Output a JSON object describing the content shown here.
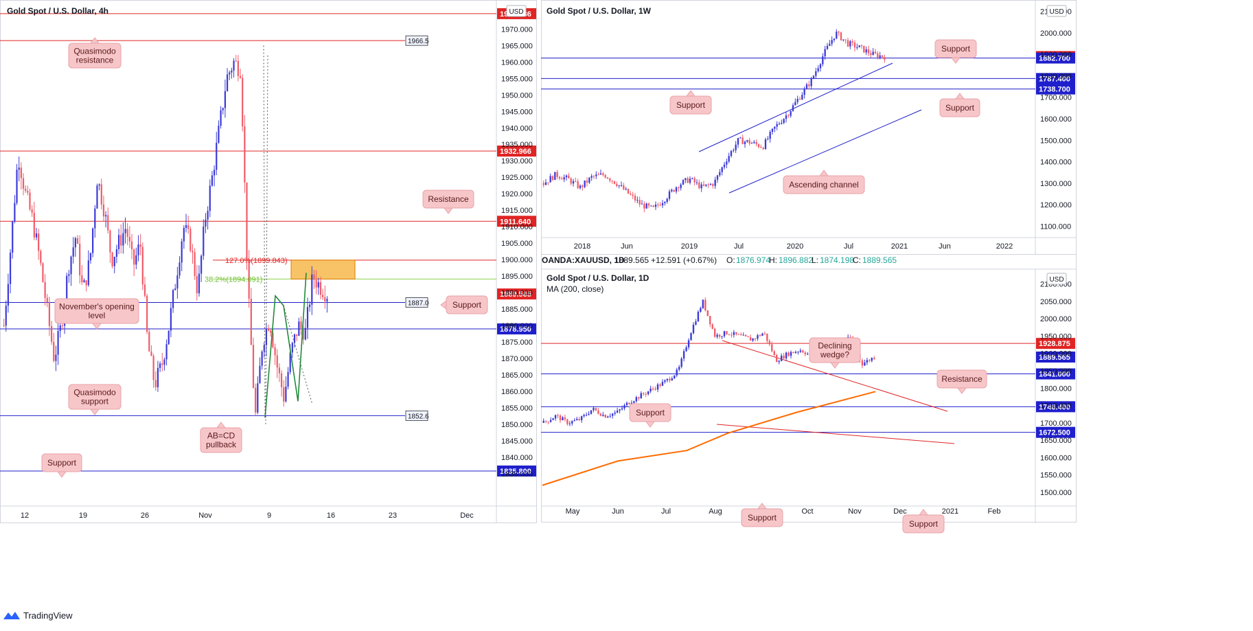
{
  "brand": {
    "name": "TradingView"
  },
  "colors": {
    "up": "#3b3bd6",
    "down": "#f05c6a",
    "support": "#1f1fcc",
    "resistance": "#e02424",
    "label_bg": "#f7c6c9",
    "label_text": "#5a1a1a",
    "ma": "#ff6a00",
    "zone": "#f7b84b"
  },
  "chart_data": [
    {
      "type": "candlestick",
      "title": "Gold Spot / U.S. Dollar, 4h",
      "currency_badge": "USD",
      "ylim": [
        1826,
        1978
      ],
      "y_ticks": [
        "1970.000",
        "1965.000",
        "1960.000",
        "1955.000",
        "1950.000",
        "1945.000",
        "1940.000",
        "1935.000",
        "1930.000",
        "1925.000",
        "1920.000",
        "1915.000",
        "1910.000",
        "1905.000",
        "1900.000",
        "1895.000",
        "1890.000",
        "1885.000",
        "1880.000",
        "1875.000",
        "1870.000",
        "1865.000",
        "1860.000",
        "1855.000",
        "1850.000",
        "1845.000",
        "1840.000",
        "1835.000"
      ],
      "x_ticks": [
        "12",
        "19",
        "26",
        "Nov",
        "9",
        "16",
        "23",
        "Dec"
      ],
      "close_path": [
        1880,
        1905,
        1932,
        1920,
        1912,
        1900,
        1885,
        1870,
        1880,
        1898,
        1907,
        1890,
        1900,
        1925,
        1915,
        1900,
        1905,
        1910,
        1898,
        1905,
        1875,
        1862,
        1868,
        1880,
        1895,
        1910,
        1905,
        1890,
        1912,
        1925,
        1940,
        1955,
        1960,
        1958,
        1890,
        1852,
        1875,
        1882,
        1868,
        1858,
        1872,
        1880,
        1878,
        1895,
        1892,
        1889.565
      ],
      "levels": [
        {
          "value": 1974.686,
          "label": "1974.686",
          "color": "red",
          "style": "tag"
        },
        {
          "value": 1966.5,
          "label": "1966.5",
          "color": "red",
          "style": "box"
        },
        {
          "value": 1932.966,
          "label": "1932.966",
          "color": "red",
          "style": "tag"
        },
        {
          "value": 1911.64,
          "label": "1911.640",
          "color": "red",
          "style": "tag"
        },
        {
          "value": 1887.0,
          "label": "1887.0",
          "color": "blue",
          "style": "box"
        },
        {
          "value": 1878.95,
          "label": "1878.950",
          "color": "blue",
          "style": "tag"
        },
        {
          "value": 1852.6,
          "label": "1852.6",
          "color": "blue",
          "style": "box"
        },
        {
          "value": 1835.8,
          "label": "1835.800",
          "color": "blue",
          "style": "tag"
        }
      ],
      "last_price": {
        "value": 1889.565,
        "label": "1889.565"
      },
      "fib_labels": [
        {
          "text": "127.0%(1899.843)",
          "value": 1899.843,
          "color": "#e02424"
        },
        {
          "text": "38.2%(1894.091)",
          "value": 1894.091,
          "color": "#6fbf2f"
        }
      ],
      "zone": {
        "y_top": 1899.843,
        "y_bottom": 1894.091
      },
      "annotations": [
        {
          "text": "Quasimodo\nresistance"
        },
        {
          "text": "Resistance"
        },
        {
          "text": "November's opening\nlevel"
        },
        {
          "text": "Support"
        },
        {
          "text": "Quasimodo\nsupport"
        },
        {
          "text": "AB=CD\npullback"
        },
        {
          "text": "Support"
        }
      ]
    },
    {
      "type": "candlestick",
      "title": "Gold Spot / U.S. Dollar, 1W",
      "currency_badge": "USD",
      "ylim": [
        1060,
        2140
      ],
      "y_ticks": [
        "2100.000",
        "2000.000",
        "1900.000",
        "1800.000",
        "1700.000",
        "1600.000",
        "1500.000",
        "1400.000",
        "1300.000",
        "1200.000",
        "1100.000"
      ],
      "x_ticks": [
        "2018",
        "Jun",
        "2019",
        "Jul",
        "2020",
        "Jul",
        "2021",
        "Jun",
        "2022"
      ],
      "close_path": [
        1300,
        1340,
        1320,
        1280,
        1330,
        1340,
        1300,
        1250,
        1200,
        1180,
        1230,
        1290,
        1320,
        1280,
        1300,
        1410,
        1500,
        1490,
        1470,
        1560,
        1620,
        1700,
        1780,
        1900,
        2000,
        1950,
        1930,
        1900,
        1889.565
      ],
      "levels": [
        {
          "value": 1889.565,
          "label": "1889.565",
          "color": "red",
          "style": "tag"
        },
        {
          "value": 1882.7,
          "label": "1882.700",
          "color": "blue",
          "style": "tag"
        },
        {
          "value": 1787.4,
          "label": "1787.400",
          "color": "blue",
          "style": "tag"
        },
        {
          "value": 1738.7,
          "label": "1738.700",
          "color": "blue",
          "style": "tag"
        }
      ],
      "annotations": [
        {
          "text": "Support"
        },
        {
          "text": "Support"
        },
        {
          "text": "Support"
        },
        {
          "text": "Ascending channel"
        }
      ]
    },
    {
      "type": "candlestick",
      "title": "Gold Spot / U.S. Dollar, 1D",
      "symbol_bar": {
        "symbol": "OANDA:XAUUSD, 1D",
        "price": "1889.565",
        "change": "+12.591 (+0.67%)",
        "open": "1876.974",
        "high": "1896.882",
        "low": "1874.198",
        "close": "1889.565"
      },
      "ma_label": "MA (200, close)",
      "currency_badge": "USD",
      "ylim": [
        1470,
        2135
      ],
      "y_ticks": [
        "2100.000",
        "2050.000",
        "2000.000",
        "1950.000",
        "1900.000",
        "1850.000",
        "1800.000",
        "1750.000",
        "1700.000",
        "1650.000",
        "1600.000",
        "1550.000",
        "1500.000"
      ],
      "x_ticks": [
        "May",
        "Jun",
        "Jul",
        "Aug",
        "Sep",
        "Oct",
        "Nov",
        "Dec",
        "2021",
        "Feb"
      ],
      "close_path": [
        1700,
        1720,
        1700,
        1710,
        1740,
        1720,
        1730,
        1760,
        1780,
        1800,
        1820,
        1850,
        1960,
        2050,
        1950,
        1960,
        1950,
        1940,
        1960,
        1880,
        1900,
        1910,
        1890,
        1900,
        1880,
        1950,
        1870,
        1889.565
      ],
      "ma200": [
        1520,
        1590,
        1620,
        1670,
        1730,
        1790
      ],
      "levels": [
        {
          "value": 1928.875,
          "label": "1928.875",
          "color": "red",
          "style": "tag"
        },
        {
          "value": 1889.565,
          "label": "1889.565",
          "color": "blue",
          "style": "tag"
        },
        {
          "value": 1841.0,
          "label": "1841.000",
          "color": "blue",
          "style": "tag"
        },
        {
          "value": 1746.4,
          "label": "1746.400",
          "color": "blue",
          "style": "tag"
        },
        {
          "value": 1672.5,
          "label": "1672.500",
          "color": "blue",
          "style": "tag"
        }
      ],
      "annotations": [
        {
          "text": "Declining\nwedge?"
        },
        {
          "text": "Resistance"
        },
        {
          "text": "Support"
        },
        {
          "text": "Support"
        },
        {
          "text": "Support"
        }
      ]
    }
  ]
}
